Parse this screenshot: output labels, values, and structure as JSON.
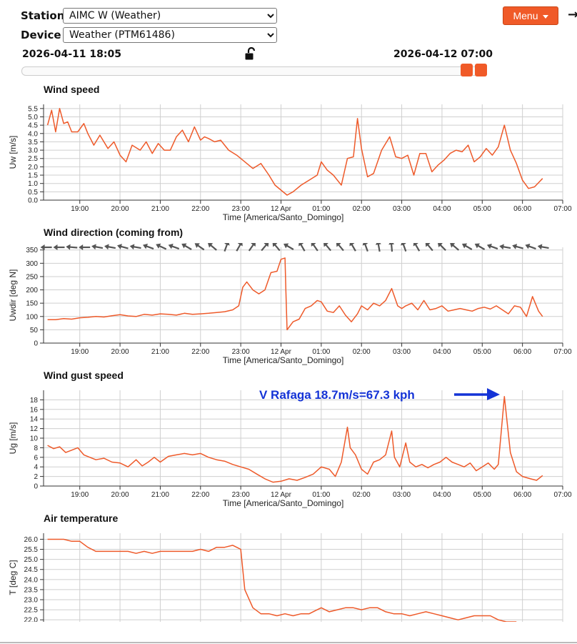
{
  "controls": {
    "station_label": "Station",
    "station_value": "AIMC W (Weather)",
    "device_label": "Device",
    "device_value": "Weather (PTM61486)",
    "menu_label": "Menu",
    "exit_icon": "arrow-right-icon",
    "lock_icon": "unlock-icon"
  },
  "range": {
    "start": "2026-04-11 18:05",
    "end": "2026-04-12 07:00"
  },
  "colors": {
    "series": "#ee5a2a",
    "grid": "#cfcfcf",
    "arrow": "#555555",
    "annotation": "#1433d6",
    "accent": "#f05a28"
  },
  "x_axis": {
    "label": "Time [America/Santo_Domingo]",
    "ticks": [
      "19:00",
      "20:00",
      "21:00",
      "22:00",
      "23:00",
      "12 Apr",
      "01:00",
      "02:00",
      "03:00",
      "04:00",
      "05:00",
      "06:00",
      "07:00"
    ],
    "tick_hours": [
      19,
      20,
      21,
      22,
      23,
      24,
      25,
      26,
      27,
      28,
      29,
      30,
      31
    ],
    "range_hours": [
      18.1,
      31.0
    ]
  },
  "charts": [
    {
      "id": "wind-speed",
      "title": "Wind speed",
      "ylabel": "Uw [m/s]",
      "type": "line",
      "ylim": [
        0,
        5.75
      ],
      "yticks": [
        "0.0",
        "0.5",
        "1.0",
        "1.5",
        "2.0",
        "2.5",
        "3.0",
        "3.5",
        "4.0",
        "4.5",
        "5.0",
        "5.5"
      ],
      "x": [
        18.2,
        18.3,
        18.4,
        18.5,
        18.6,
        18.7,
        18.8,
        18.95,
        19.1,
        19.2,
        19.35,
        19.5,
        19.7,
        19.85,
        20.0,
        20.15,
        20.3,
        20.5,
        20.65,
        20.8,
        20.95,
        21.1,
        21.25,
        21.4,
        21.55,
        21.7,
        21.85,
        22.0,
        22.1,
        22.2,
        22.35,
        22.5,
        22.7,
        22.9,
        23.0,
        23.15,
        23.3,
        23.5,
        23.7,
        23.85,
        24.0,
        24.15,
        24.3,
        24.5,
        24.7,
        24.9,
        25.0,
        25.15,
        25.3,
        25.5,
        25.65,
        25.8,
        25.9,
        26.0,
        26.15,
        26.3,
        26.5,
        26.7,
        26.85,
        27.0,
        27.15,
        27.3,
        27.45,
        27.6,
        27.75,
        27.9,
        28.05,
        28.2,
        28.35,
        28.5,
        28.65,
        28.8,
        28.95,
        29.1,
        29.25,
        29.4,
        29.55,
        29.7,
        29.85,
        30.0,
        30.15,
        30.3,
        30.5
      ],
      "y": [
        4.5,
        5.4,
        4.1,
        5.5,
        4.6,
        4.7,
        4.1,
        4.1,
        4.6,
        4.0,
        3.3,
        3.9,
        3.1,
        3.5,
        2.7,
        2.3,
        3.3,
        3.0,
        3.5,
        2.8,
        3.4,
        3.0,
        3.0,
        3.8,
        4.2,
        3.5,
        4.4,
        3.6,
        3.8,
        3.7,
        3.5,
        3.6,
        3.0,
        2.7,
        2.5,
        2.2,
        1.9,
        2.2,
        1.5,
        0.9,
        0.6,
        0.3,
        0.5,
        0.9,
        1.2,
        1.5,
        2.3,
        1.8,
        1.5,
        0.9,
        2.5,
        2.6,
        4.9,
        3.1,
        1.4,
        1.6,
        3.0,
        3.8,
        2.6,
        2.5,
        2.7,
        1.5,
        2.8,
        2.8,
        1.7,
        2.1,
        2.4,
        2.8,
        3.0,
        2.9,
        3.3,
        2.3,
        2.6,
        3.1,
        2.7,
        3.2,
        4.5,
        3.0,
        2.2,
        1.2,
        0.7,
        0.8,
        1.3
      ]
    },
    {
      "id": "wind-direction",
      "title": "Wind direction (coming from)",
      "ylabel": "Uwdir [deg N]",
      "type": "line",
      "ylim": [
        0,
        360
      ],
      "yticks": [
        "0",
        "50",
        "100",
        "150",
        "200",
        "250",
        "300",
        "350"
      ],
      "x": [
        18.2,
        18.4,
        18.6,
        18.8,
        19.0,
        19.2,
        19.4,
        19.6,
        19.8,
        20.0,
        20.2,
        20.4,
        20.6,
        20.8,
        21.0,
        21.2,
        21.4,
        21.6,
        21.8,
        22.0,
        22.2,
        22.4,
        22.6,
        22.8,
        22.95,
        23.05,
        23.15,
        23.3,
        23.45,
        23.6,
        23.75,
        23.9,
        24.0,
        24.1,
        24.12,
        24.15,
        24.3,
        24.45,
        24.6,
        24.75,
        24.9,
        25.0,
        25.15,
        25.3,
        25.45,
        25.6,
        25.75,
        25.9,
        26.0,
        26.15,
        26.3,
        26.45,
        26.6,
        26.75,
        26.9,
        27.0,
        27.1,
        27.25,
        27.4,
        27.55,
        27.7,
        27.85,
        28.0,
        28.15,
        28.3,
        28.45,
        28.6,
        28.75,
        28.9,
        29.05,
        29.2,
        29.35,
        29.5,
        29.65,
        29.8,
        29.95,
        30.1,
        30.25,
        30.4,
        30.5
      ],
      "y": [
        88,
        88,
        92,
        90,
        95,
        97,
        100,
        98,
        103,
        107,
        102,
        100,
        108,
        105,
        110,
        108,
        105,
        112,
        108,
        110,
        112,
        115,
        118,
        125,
        140,
        210,
        230,
        200,
        185,
        200,
        265,
        270,
        315,
        320,
        200,
        50,
        80,
        90,
        130,
        140,
        160,
        155,
        120,
        115,
        140,
        105,
        80,
        110,
        140,
        125,
        150,
        140,
        160,
        205,
        140,
        130,
        140,
        150,
        125,
        160,
        125,
        130,
        140,
        120,
        125,
        130,
        125,
        120,
        130,
        135,
        128,
        140,
        125,
        110,
        140,
        135,
        100,
        175,
        120,
        100
      ],
      "arrows_deg": [
        270,
        270,
        275,
        270,
        280,
        280,
        285,
        280,
        290,
        295,
        290,
        300,
        305,
        310,
        20,
        30,
        35,
        40,
        320,
        300,
        330,
        325,
        320,
        320,
        330,
        340,
        350,
        355,
        340,
        330,
        320,
        315,
        310,
        300,
        300,
        290,
        280,
        285,
        290,
        280
      ]
    },
    {
      "id": "wind-gust",
      "title": "Wind gust speed",
      "ylabel": "Ug [m/s]",
      "type": "line",
      "ylim": [
        0,
        20
      ],
      "yticks": [
        "0",
        "2",
        "4",
        "6",
        "8",
        "10",
        "12",
        "14",
        "16",
        "18"
      ],
      "annotation": "V Rafaga 18.7m/s=67.3 kph",
      "x": [
        18.2,
        18.35,
        18.5,
        18.65,
        18.8,
        18.95,
        19.1,
        19.25,
        19.4,
        19.6,
        19.8,
        20.0,
        20.2,
        20.4,
        20.55,
        20.7,
        20.85,
        21.0,
        21.2,
        21.4,
        21.6,
        21.8,
        22.0,
        22.2,
        22.4,
        22.6,
        22.8,
        23.0,
        23.2,
        23.4,
        23.6,
        23.8,
        24.0,
        24.2,
        24.4,
        24.6,
        24.8,
        25.0,
        25.2,
        25.35,
        25.5,
        25.65,
        25.72,
        25.85,
        26.0,
        26.15,
        26.3,
        26.45,
        26.6,
        26.75,
        26.82,
        26.95,
        27.1,
        27.2,
        27.35,
        27.5,
        27.65,
        27.8,
        27.95,
        28.1,
        28.25,
        28.4,
        28.55,
        28.7,
        28.85,
        29.0,
        29.15,
        29.3,
        29.4,
        29.55,
        29.7,
        29.85,
        30.0,
        30.2,
        30.35,
        30.5
      ],
      "y": [
        8.5,
        7.8,
        8.2,
        7.0,
        7.5,
        8.0,
        6.5,
        6.0,
        5.5,
        5.8,
        5.0,
        4.8,
        4.0,
        5.5,
        4.2,
        5.0,
        6.0,
        5.0,
        6.2,
        6.5,
        6.8,
        6.5,
        6.8,
        6.0,
        5.5,
        5.2,
        4.5,
        4.0,
        3.5,
        2.5,
        1.5,
        0.8,
        1.0,
        1.5,
        1.2,
        1.8,
        2.5,
        4.0,
        3.5,
        2.0,
        5.0,
        12.3,
        8.0,
        6.5,
        3.5,
        2.5,
        5.0,
        5.5,
        6.5,
        11.5,
        6.0,
        4.0,
        9.0,
        5.0,
        4.0,
        4.5,
        3.8,
        4.5,
        5.0,
        6.0,
        5.0,
        4.5,
        4.0,
        4.8,
        3.2,
        4.0,
        4.8,
        3.5,
        4.5,
        18.7,
        7.0,
        3.0,
        2.0,
        1.5,
        1.2,
        2.2
      ]
    },
    {
      "id": "air-temperature",
      "title": "Air temperature",
      "ylabel": "T [deg C]",
      "type": "line",
      "ylim": [
        21.9,
        26.3
      ],
      "yticks": [
        "22.0",
        "22.5",
        "23.0",
        "23.5",
        "24.0",
        "24.5",
        "25.0",
        "25.5",
        "26.0"
      ],
      "x": [
        18.2,
        18.6,
        18.8,
        19.0,
        19.2,
        19.4,
        19.6,
        20.0,
        20.2,
        20.4,
        20.6,
        20.8,
        21.0,
        21.4,
        21.8,
        22.0,
        22.2,
        22.4,
        22.6,
        22.8,
        22.9,
        23.0,
        23.1,
        23.3,
        23.5,
        23.7,
        23.9,
        24.1,
        24.3,
        24.5,
        24.7,
        24.9,
        25.0,
        25.2,
        25.4,
        25.6,
        25.8,
        26.0,
        26.2,
        26.4,
        26.6,
        26.8,
        27.0,
        27.2,
        27.4,
        27.6,
        27.8,
        28.0,
        28.2,
        28.4,
        28.6,
        28.8,
        29.0,
        29.2,
        29.4,
        29.6,
        29.8,
        29.85
      ],
      "y": [
        26.0,
        26.0,
        25.9,
        25.9,
        25.6,
        25.4,
        25.4,
        25.4,
        25.4,
        25.3,
        25.4,
        25.3,
        25.4,
        25.4,
        25.4,
        25.5,
        25.4,
        25.6,
        25.6,
        25.7,
        25.6,
        25.5,
        23.5,
        22.6,
        22.3,
        22.3,
        22.2,
        22.3,
        22.2,
        22.3,
        22.3,
        22.5,
        22.6,
        22.4,
        22.5,
        22.6,
        22.6,
        22.5,
        22.6,
        22.6,
        22.4,
        22.3,
        22.3,
        22.2,
        22.3,
        22.4,
        22.3,
        22.2,
        22.1,
        22.0,
        22.1,
        22.2,
        22.2,
        22.2,
        22.0,
        21.9,
        21.9,
        21.9
      ]
    }
  ]
}
